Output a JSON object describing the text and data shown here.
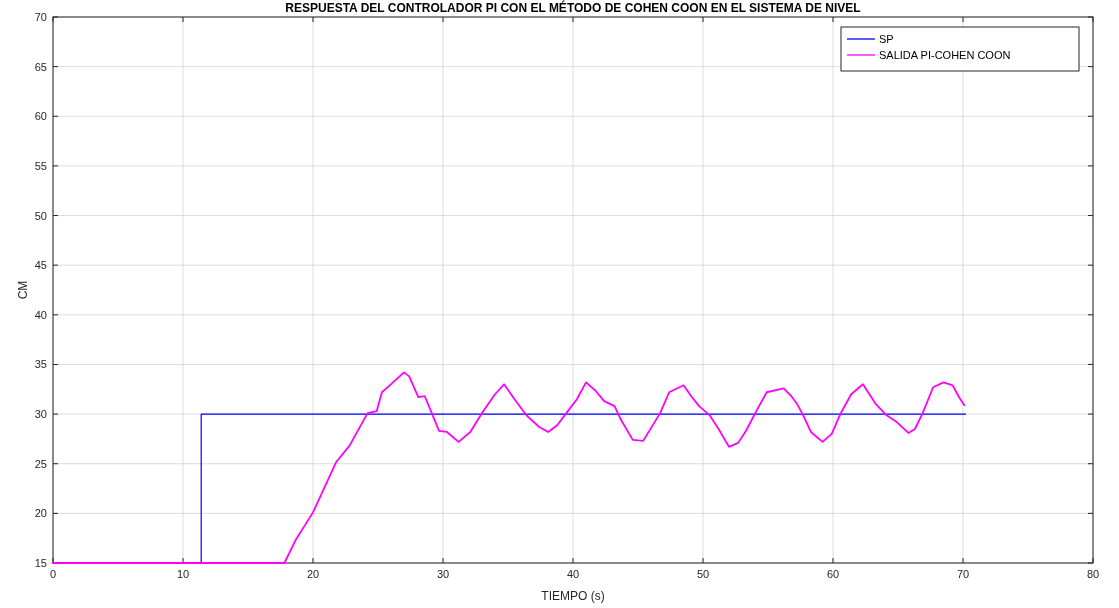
{
  "chart_data": {
    "type": "line",
    "title": "RESPUESTA DEL CONTROLADOR PI CON EL MÉTODO DE COHEN COON EN EL SISTEMA DE NIVEL",
    "xlabel": "TIEMPO (s)",
    "ylabel": "CM",
    "xlim": [
      0,
      80
    ],
    "ylim": [
      15,
      70
    ],
    "xticks": [
      0,
      10,
      20,
      30,
      40,
      50,
      60,
      70,
      80
    ],
    "yticks": [
      15,
      20,
      25,
      30,
      35,
      40,
      45,
      50,
      55,
      60,
      65,
      70
    ],
    "grid": true,
    "legend": "top right",
    "line_style": "solid",
    "series": [
      {
        "name": "SP",
        "color": "#0000ff",
        "x": [
          0,
          11.4,
          11.4,
          70.2
        ],
        "values": [
          15,
          15,
          30,
          30
        ]
      },
      {
        "name": "SALIDA PI-COHEN COON",
        "color": "#ff00ff",
        "x": [
          0,
          17.8,
          18.7,
          20,
          21.8,
          22.8,
          24.2,
          24.9,
          25.3,
          25.9,
          27.0,
          27.4,
          28.1,
          28.6,
          29.2,
          29.7,
          30.3,
          31.2,
          32.1,
          33.0,
          34.0,
          34.7,
          35.5,
          36.4,
          37.4,
          38.1,
          38.8,
          39.6,
          40.3,
          41.0,
          41.7,
          42.4,
          43.2,
          43.7,
          44.6,
          45.4,
          46.7,
          47.4,
          48.5,
          49.1,
          49.7,
          50.5,
          51.2,
          52.0,
          52.7,
          53.3,
          54.1,
          54.9,
          56.2,
          56.8,
          57.2,
          57.7,
          58.3,
          59.2,
          59.9,
          60.6,
          61.4,
          62.3,
          63.3,
          64.1,
          64.9,
          65.8,
          66.3,
          66.9,
          67.7,
          68.5,
          69.2,
          69.7,
          70.1
        ],
        "values": [
          15,
          15,
          17.4,
          20.1,
          25.2,
          26.8,
          30.1,
          30.3,
          32.2,
          32.9,
          34.2,
          33.8,
          31.7,
          31.8,
          29.9,
          28.3,
          28.2,
          27.2,
          28.2,
          30.1,
          32.0,
          33.0,
          31.5,
          29.9,
          28.7,
          28.2,
          28.9,
          30.3,
          31.5,
          33.2,
          32.4,
          31.3,
          30.8,
          29.4,
          27.4,
          27.3,
          30.1,
          32.2,
          32.9,
          31.8,
          30.8,
          29.9,
          28.5,
          26.7,
          27.1,
          28.3,
          30.3,
          32.2,
          32.6,
          31.8,
          31.1,
          29.9,
          28.2,
          27.2,
          28.0,
          30.1,
          32.0,
          33.0,
          31.0,
          29.9,
          29.2,
          28.1,
          28.5,
          30.1,
          32.7,
          33.2,
          32.9,
          31.7,
          30.9
        ]
      }
    ]
  }
}
